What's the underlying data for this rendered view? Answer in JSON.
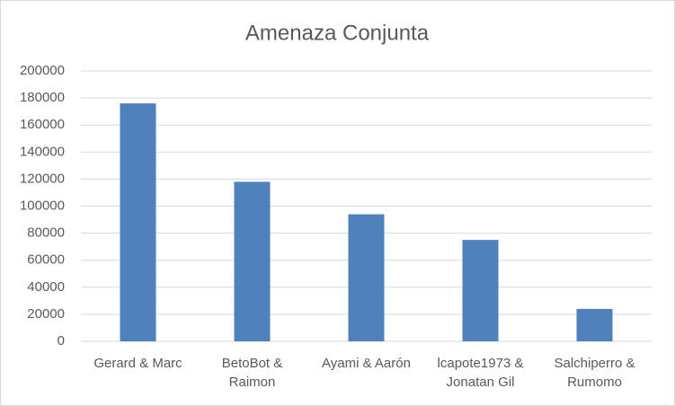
{
  "chart_data": {
    "type": "bar",
    "title": "Amenaza Conjunta",
    "categories": [
      "Gerard & Marc",
      "BetoBot & Raimon",
      "Ayami & Aarón",
      "lcapote1973 & Jonatan Gil",
      "Salchiperro & Rumomo"
    ],
    "values": [
      176000,
      118000,
      94000,
      75000,
      24000
    ],
    "color": "#4f81bd",
    "ylim": [
      0,
      200000
    ],
    "yticks": [
      0,
      20000,
      40000,
      60000,
      80000,
      100000,
      120000,
      140000,
      160000,
      180000,
      200000
    ],
    "grid": true
  }
}
